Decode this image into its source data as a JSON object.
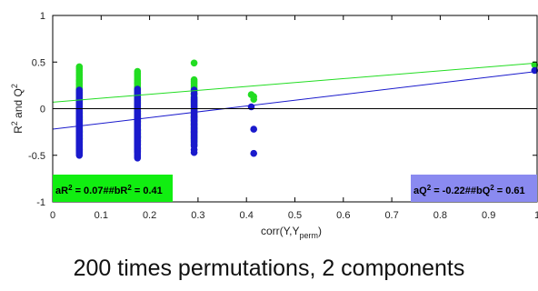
{
  "caption": "200 times permutations, 2 components",
  "colors": {
    "r2": "#22dd22",
    "q2": "#1a1acc",
    "r2_box": "#11ee11",
    "q2_box": "#8a8af0"
  },
  "chart_data": {
    "type": "scatter",
    "title": "",
    "xlabel": {
      "main": "corr(Y,Y",
      "sub": "perm",
      "end": ")"
    },
    "ylabel": {
      "r": "R",
      "sup1": "2",
      "mid": " and Q",
      "sup2": "2"
    },
    "xlim": [
      0,
      1
    ],
    "ylim": [
      -1,
      1
    ],
    "xticks": [
      0,
      0.1,
      0.2,
      0.3,
      0.4,
      0.5,
      0.6,
      0.7,
      0.8,
      0.9,
      1
    ],
    "xtick_labels": [
      "0",
      "0.1",
      "0.2",
      "0.3",
      "0.4",
      "0.5",
      "0.6",
      "0.7",
      "0.8",
      "0.9",
      "1"
    ],
    "yticks": [
      -1,
      -0.5,
      0,
      0.5,
      1
    ],
    "ytick_labels": [
      "-1",
      "-0.5",
      "0",
      "0.5",
      "1"
    ],
    "grid": false,
    "zero_line": true,
    "series": [
      {
        "key": "r2",
        "x": [
          0.055,
          0.055,
          0.055,
          0.055,
          0.055,
          0.055,
          0.055,
          0.055,
          0.055,
          0.055,
          0.055,
          0.055,
          0.055,
          0.055,
          0.055,
          0.055,
          0.055,
          0.055,
          0.055,
          0.055,
          0.055,
          0.055,
          0.055,
          0.055,
          0.055,
          0.055,
          0.055,
          0.055,
          0.055,
          0.055,
          0.055,
          0.055,
          0.055,
          0.055,
          0.055,
          0.055,
          0.055,
          0.055,
          0.055,
          0.055,
          0.055,
          0.055,
          0.055,
          0.055,
          0.055,
          0.055,
          0.055,
          0.055,
          0.055,
          0.055,
          0.055,
          0.055,
          0.055,
          0.055,
          0.055,
          0.055,
          0.055,
          0.055,
          0.055,
          0.055,
          0.055,
          0.055,
          0.055,
          0.055,
          0.055,
          0.055,
          0.055,
          0.055,
          0.055,
          0.055,
          0.055,
          0.055,
          0.055,
          0.055,
          0.055,
          0.055,
          0.055,
          0.055,
          0.055,
          0.055,
          0.175,
          0.175,
          0.175,
          0.175,
          0.175,
          0.175,
          0.175,
          0.175,
          0.175,
          0.175,
          0.175,
          0.175,
          0.175,
          0.175,
          0.175,
          0.175,
          0.175,
          0.175,
          0.175,
          0.175,
          0.175,
          0.175,
          0.175,
          0.175,
          0.175,
          0.175,
          0.175,
          0.175,
          0.175,
          0.175,
          0.175,
          0.175,
          0.175,
          0.175,
          0.175,
          0.175,
          0.175,
          0.175,
          0.175,
          0.175,
          0.175,
          0.175,
          0.175,
          0.175,
          0.175,
          0.175,
          0.175,
          0.175,
          0.175,
          0.175,
          0.175,
          0.175,
          0.175,
          0.175,
          0.175,
          0.175,
          0.175,
          0.175,
          0.175,
          0.175,
          0.175,
          0.175,
          0.175,
          0.175,
          0.175,
          0.175,
          0.175,
          0.175,
          0.175,
          0.175,
          0.175,
          0.175,
          0.175,
          0.175,
          0.175,
          0.175,
          0.175,
          0.175,
          0.175,
          0.175,
          0.292,
          0.292,
          0.292,
          0.292,
          0.292,
          0.292,
          0.292,
          0.292,
          0.292,
          0.292,
          0.292,
          0.292,
          0.292,
          0.292,
          0.292,
          0.292,
          0.292,
          0.292,
          0.292,
          0.292,
          0.292,
          0.292,
          0.292,
          0.292,
          0.292,
          0.292,
          0.292,
          0.292,
          0.292,
          0.292,
          0.292,
          0.292,
          0.292,
          0.292,
          0.292,
          0.292,
          0.41,
          0.415,
          0.415,
          0.995
        ],
        "y": [
          0.45,
          0.41,
          0.37,
          0.33,
          0.29,
          0.25,
          0.21,
          0.17,
          0.13,
          0.09,
          0.05,
          0.01,
          -0.03,
          -0.07,
          -0.11,
          -0.15,
          -0.19,
          -0.23,
          -0.27,
          -0.31,
          0.43,
          0.39,
          0.35,
          0.31,
          0.27,
          0.23,
          0.19,
          0.15,
          0.11,
          0.07,
          0.03,
          -0.01,
          -0.05,
          -0.09,
          -0.13,
          -0.17,
          -0.21,
          -0.25,
          -0.29,
          -0.33,
          0.3,
          0.26,
          0.22,
          0.18,
          0.14,
          0.1,
          0.06,
          0.02,
          -0.02,
          -0.06,
          -0.1,
          -0.14,
          -0.18,
          -0.22,
          -0.26,
          0.2,
          0.16,
          0.12,
          0.08,
          0.04,
          0.0,
          -0.04,
          -0.08,
          -0.12,
          -0.16,
          -0.2,
          -0.24,
          -0.28,
          -0.32,
          -0.36,
          0.1,
          0.05,
          0.0,
          -0.05,
          -0.1,
          -0.15,
          -0.2,
          -0.25,
          -0.3,
          -0.35,
          0.4,
          0.36,
          0.32,
          0.28,
          0.24,
          0.2,
          0.16,
          0.12,
          0.08,
          0.04,
          0.0,
          -0.04,
          -0.08,
          -0.12,
          -0.16,
          -0.2,
          -0.24,
          -0.28,
          -0.32,
          -0.36,
          0.38,
          0.34,
          0.3,
          0.26,
          0.22,
          0.18,
          0.14,
          0.1,
          0.06,
          0.02,
          -0.02,
          -0.06,
          -0.1,
          -0.14,
          -0.18,
          -0.22,
          -0.26,
          -0.3,
          -0.34,
          -0.38,
          0.27,
          0.23,
          0.19,
          0.15,
          0.11,
          0.07,
          0.03,
          -0.01,
          -0.05,
          -0.09,
          -0.13,
          -0.17,
          -0.21,
          -0.25,
          -0.29,
          0.21,
          0.17,
          0.13,
          0.09,
          0.05,
          0.01,
          -0.03,
          -0.07,
          -0.11,
          -0.15,
          -0.19,
          -0.23,
          -0.27,
          -0.31,
          -0.35,
          0.12,
          0.06,
          0.0,
          -0.06,
          -0.12,
          -0.18,
          -0.24,
          -0.3,
          -0.36,
          -0.42,
          0.49,
          0.31,
          0.27,
          0.23,
          0.19,
          0.15,
          0.11,
          0.07,
          0.03,
          -0.01,
          -0.05,
          -0.09,
          -0.13,
          -0.17,
          -0.21,
          -0.25,
          -0.29,
          -0.33,
          0.29,
          0.25,
          0.21,
          0.17,
          0.13,
          0.09,
          0.05,
          0.01,
          -0.03,
          -0.07,
          -0.11,
          -0.15,
          -0.19,
          -0.23,
          -0.27,
          -0.31,
          -0.35,
          -0.39,
          0.15,
          0.13,
          0.1,
          0.47
        ]
      },
      {
        "key": "q2",
        "x": [
          0.055,
          0.055,
          0.055,
          0.055,
          0.055,
          0.055,
          0.055,
          0.055,
          0.055,
          0.055,
          0.055,
          0.055,
          0.055,
          0.055,
          0.055,
          0.055,
          0.055,
          0.055,
          0.055,
          0.055,
          0.055,
          0.055,
          0.055,
          0.055,
          0.055,
          0.055,
          0.055,
          0.055,
          0.055,
          0.055,
          0.055,
          0.055,
          0.055,
          0.055,
          0.055,
          0.055,
          0.055,
          0.055,
          0.055,
          0.055,
          0.055,
          0.055,
          0.055,
          0.055,
          0.055,
          0.055,
          0.055,
          0.055,
          0.055,
          0.055,
          0.055,
          0.055,
          0.055,
          0.055,
          0.055,
          0.055,
          0.055,
          0.055,
          0.055,
          0.055,
          0.055,
          0.055,
          0.055,
          0.055,
          0.055,
          0.055,
          0.055,
          0.055,
          0.055,
          0.055,
          0.055,
          0.055,
          0.055,
          0.055,
          0.055,
          0.055,
          0.055,
          0.055,
          0.055,
          0.055,
          0.175,
          0.175,
          0.175,
          0.175,
          0.175,
          0.175,
          0.175,
          0.175,
          0.175,
          0.175,
          0.175,
          0.175,
          0.175,
          0.175,
          0.175,
          0.175,
          0.175,
          0.175,
          0.175,
          0.175,
          0.175,
          0.175,
          0.175,
          0.175,
          0.175,
          0.175,
          0.175,
          0.175,
          0.175,
          0.175,
          0.175,
          0.175,
          0.175,
          0.175,
          0.175,
          0.175,
          0.175,
          0.175,
          0.175,
          0.175,
          0.175,
          0.175,
          0.175,
          0.175,
          0.175,
          0.175,
          0.175,
          0.175,
          0.175,
          0.175,
          0.175,
          0.175,
          0.175,
          0.175,
          0.175,
          0.175,
          0.175,
          0.175,
          0.175,
          0.175,
          0.175,
          0.175,
          0.175,
          0.175,
          0.175,
          0.175,
          0.175,
          0.175,
          0.175,
          0.175,
          0.175,
          0.175,
          0.175,
          0.175,
          0.175,
          0.175,
          0.175,
          0.175,
          0.175,
          0.175,
          0.292,
          0.292,
          0.292,
          0.292,
          0.292,
          0.292,
          0.292,
          0.292,
          0.292,
          0.292,
          0.292,
          0.292,
          0.292,
          0.292,
          0.292,
          0.292,
          0.292,
          0.292,
          0.292,
          0.292,
          0.292,
          0.292,
          0.292,
          0.292,
          0.292,
          0.292,
          0.292,
          0.292,
          0.292,
          0.292,
          0.292,
          0.292,
          0.292,
          0.292,
          0.292,
          0.292,
          0.41,
          0.415,
          0.415,
          0.995
        ],
        "y": [
          0.2,
          0.16,
          0.12,
          0.08,
          0.04,
          0.0,
          -0.04,
          -0.08,
          -0.12,
          -0.16,
          -0.2,
          -0.24,
          -0.28,
          -0.32,
          -0.36,
          -0.4,
          -0.44,
          -0.48,
          -0.5,
          -0.46,
          0.18,
          0.14,
          0.1,
          0.06,
          0.02,
          -0.02,
          -0.06,
          -0.1,
          -0.14,
          -0.18,
          -0.22,
          -0.26,
          -0.3,
          -0.34,
          -0.38,
          -0.42,
          -0.45,
          -0.47,
          -0.43,
          -0.39,
          0.09,
          0.05,
          0.01,
          -0.03,
          -0.07,
          -0.11,
          -0.15,
          -0.19,
          -0.23,
          -0.27,
          -0.31,
          -0.35,
          -0.39,
          -0.41,
          -0.37,
          0.03,
          -0.01,
          -0.05,
          -0.09,
          -0.13,
          -0.17,
          -0.21,
          -0.25,
          -0.29,
          -0.33,
          -0.17,
          -0.21,
          -0.25,
          -0.29,
          -0.33,
          -0.08,
          -0.12,
          -0.16,
          -0.2,
          -0.24,
          -0.28,
          -0.32,
          -0.36,
          -0.4,
          -0.44,
          0.21,
          0.17,
          0.13,
          0.09,
          0.05,
          0.01,
          -0.03,
          -0.07,
          -0.11,
          -0.15,
          -0.19,
          -0.23,
          -0.27,
          -0.31,
          -0.35,
          -0.39,
          -0.43,
          -0.47,
          -0.51,
          -0.53,
          0.19,
          0.15,
          0.11,
          0.07,
          0.03,
          -0.01,
          -0.05,
          -0.09,
          -0.13,
          -0.17,
          -0.21,
          -0.25,
          -0.29,
          -0.33,
          -0.37,
          -0.41,
          -0.45,
          -0.49,
          -0.44,
          -0.4,
          0.05,
          0.01,
          -0.03,
          -0.07,
          -0.11,
          -0.15,
          -0.19,
          -0.23,
          -0.27,
          -0.31,
          -0.35,
          -0.39,
          -0.43,
          -0.38,
          -0.34,
          -0.02,
          -0.06,
          -0.1,
          -0.14,
          -0.18,
          -0.22,
          -0.26,
          -0.3,
          -0.34,
          -0.38,
          -0.42,
          -0.46,
          -0.36,
          -0.32,
          -0.28,
          -0.1,
          -0.14,
          -0.18,
          -0.22,
          -0.26,
          -0.3,
          -0.34,
          -0.38,
          -0.42,
          -0.46,
          0.2,
          0.16,
          0.12,
          0.08,
          0.04,
          0.0,
          -0.04,
          -0.08,
          -0.12,
          -0.16,
          -0.2,
          -0.24,
          -0.28,
          -0.32,
          -0.36,
          -0.4,
          -0.44,
          -0.47,
          0.1,
          0.06,
          0.02,
          -0.02,
          -0.06,
          -0.1,
          -0.14,
          -0.18,
          -0.22,
          -0.26,
          -0.3,
          -0.34,
          -0.38,
          -0.25,
          -0.21,
          -0.17,
          -0.13,
          -0.09,
          0.02,
          -0.22,
          -0.48,
          0.41
        ]
      }
    ],
    "fit_lines": [
      {
        "key": "r2",
        "x": [
          0,
          1
        ],
        "y": [
          0.07,
          0.49
        ]
      },
      {
        "key": "q2",
        "x": [
          0,
          1
        ],
        "y": [
          -0.22,
          0.4
        ]
      }
    ],
    "legend_placement": [
      "bottom-left",
      "bottom-right"
    ],
    "annotations": [
      {
        "key": "r2",
        "position": "bottom-left",
        "a": "aR",
        "sup": "2",
        "rest": " = 0.07##bR",
        "sup2": "2",
        "end": " = 0.41"
      },
      {
        "key": "q2",
        "position": "bottom-right",
        "a": "aQ",
        "sup": "2",
        "rest": " = -0.22##bQ",
        "sup2": "2",
        "end": " = 0.61"
      }
    ]
  }
}
